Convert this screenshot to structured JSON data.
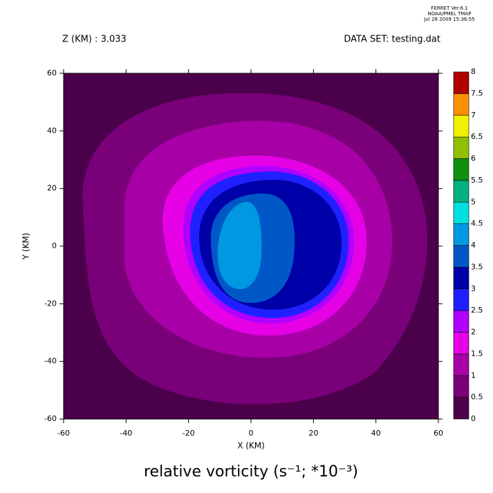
{
  "chart_data": {
    "type": "contour",
    "header": [
      "FERRET  Ver.6.1",
      "NOAA/PMEL TMAP",
      "Jul 28 2009 15:36:55"
    ],
    "title": "Z (KM) : 3.033",
    "dataset": "DATA SET: testing.dat",
    "xlabel": "X (KM)",
    "ylabel": "Y (KM)",
    "caption": "relative vorticity (s⁻¹; *10⁻³)",
    "xlim": [
      -60,
      60
    ],
    "xticks": [
      -60,
      -40,
      -20,
      0,
      20,
      40,
      60
    ],
    "ylim": [
      -60,
      60
    ],
    "yticks": [
      -60,
      -40,
      -20,
      0,
      20,
      40,
      60
    ],
    "colorbar": {
      "levels": [
        0,
        0.5,
        1,
        1.5,
        2,
        2.5,
        3,
        3.5,
        4,
        4.5,
        5,
        5.5,
        6,
        6.5,
        7,
        7.5,
        8
      ],
      "colors": [
        "#4b004b",
        "#7a007a",
        "#a600a6",
        "#e600e6",
        "#b000ff",
        "#2020ff",
        "#0000a8",
        "#0058c8",
        "#0098e0",
        "#00e0e0",
        "#00b080",
        "#109010",
        "#90c000",
        "#f0f000",
        "#ff9000",
        "#b00000"
      ]
    }
  }
}
